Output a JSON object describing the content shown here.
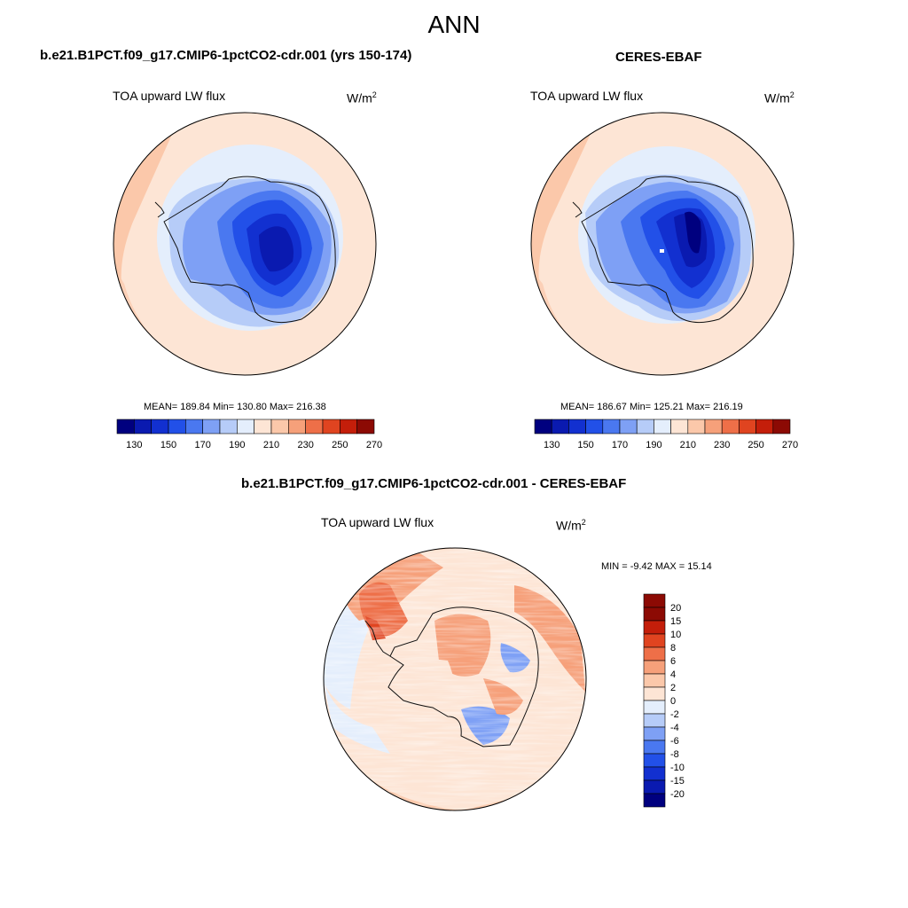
{
  "suptitle": "ANN",
  "panels": [
    {
      "title": "b.e21.B1PCT.f09_g17.CMIP6-1pctCO2-cdr.001 (yrs 150-174)",
      "variable": "TOA upward LW flux",
      "units_base": "W/m",
      "units_exp": "2",
      "stats": "MEAN= 189.84  Min= 130.80  Max= 216.38"
    },
    {
      "title": "CERES-EBAF",
      "variable": "TOA upward LW flux",
      "units_base": "W/m",
      "units_exp": "2",
      "stats": "MEAN= 186.67  Min= 125.21  Max= 216.19"
    },
    {
      "title": "b.e21.B1PCT.f09_g17.CMIP6-1pctCO2-cdr.001 - CERES-EBAF",
      "variable": "TOA upward LW flux",
      "units_base": "W/m",
      "units_exp": "2",
      "stats": "MIN =  -9.42 MAX =  15.14"
    }
  ],
  "field_colorbar": {
    "colors": [
      "#00007f",
      "#0a1ab0",
      "#1230d0",
      "#2250e8",
      "#4a78f0",
      "#7ea0f5",
      "#b6ccf8",
      "#e4eefc",
      "#fde5d5",
      "#fbc8aa",
      "#f6a07a",
      "#ee6f48",
      "#e04420",
      "#c41e0a",
      "#8c0a04"
    ],
    "tick_labels": [
      "130",
      "150",
      "170",
      "190",
      "210",
      "230",
      "250",
      "270"
    ]
  },
  "diff_colorbar": {
    "colors": [
      "#00007f",
      "#0a1ab0",
      "#1230d0",
      "#2250e8",
      "#4a78f0",
      "#7ea0f5",
      "#b6ccf8",
      "#e4eefc",
      "#fde5d5",
      "#fbc8aa",
      "#f6a07a",
      "#ee6f48",
      "#e04420",
      "#c41e0a",
      "#8c0a04"
    ],
    "tick_labels": [
      "20",
      "15",
      "10",
      "8",
      "6",
      "4",
      "2",
      "0",
      "-2",
      "-4",
      "-6",
      "-8",
      "-10",
      "-15",
      "-20"
    ]
  }
}
